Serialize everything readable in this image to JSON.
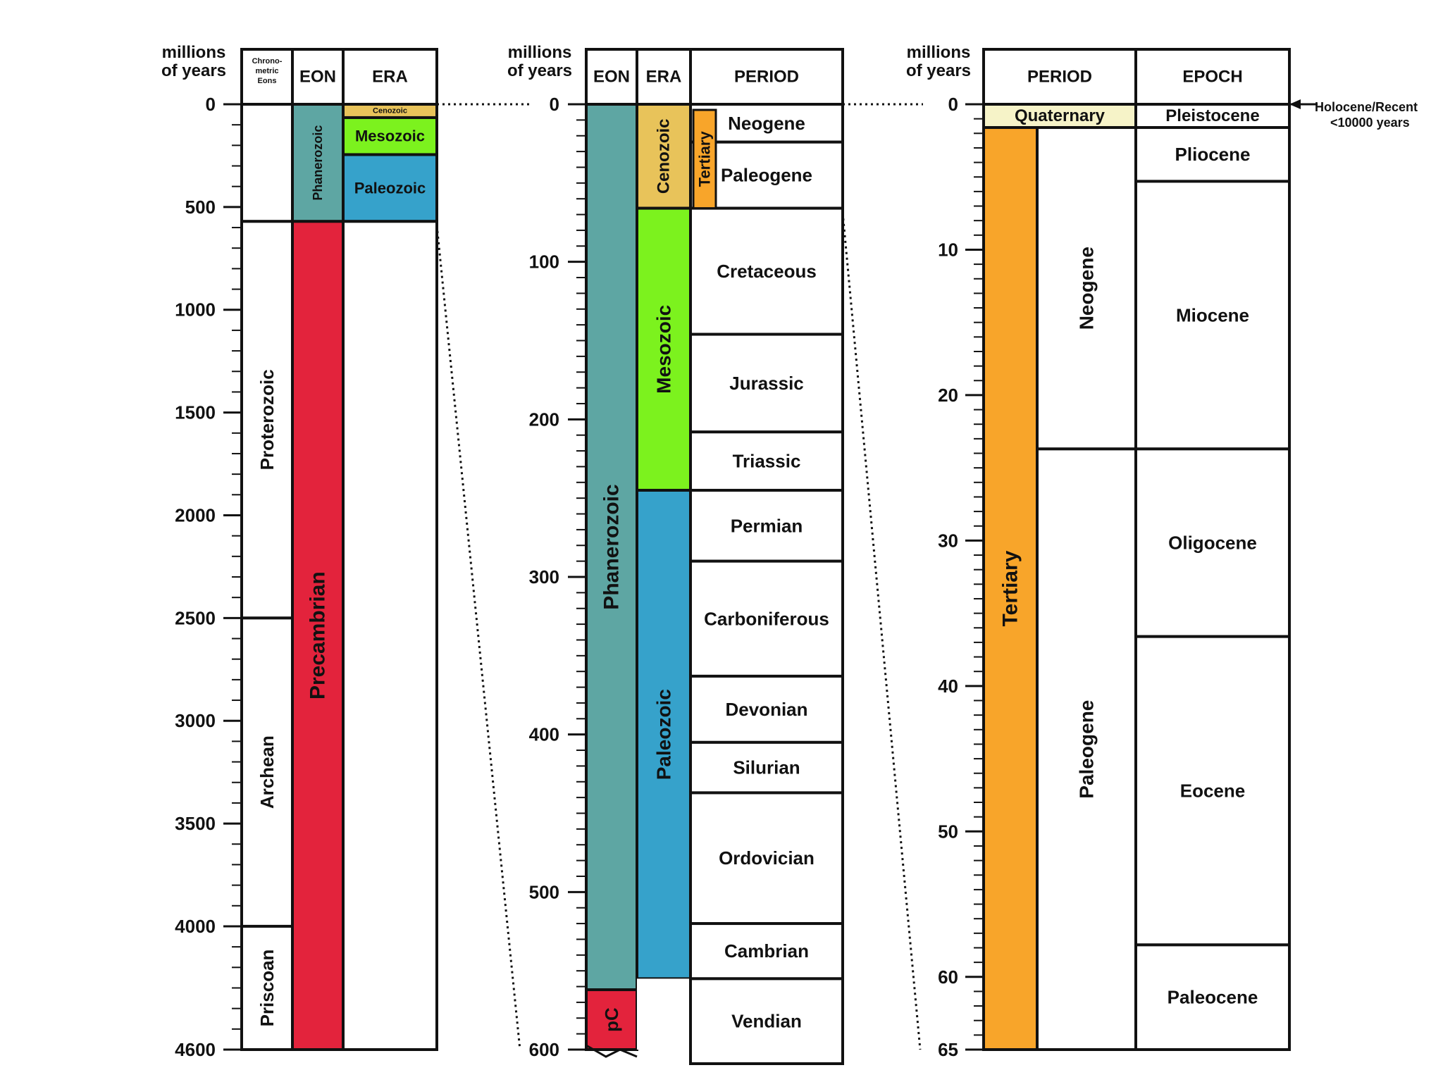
{
  "axis_title": [
    "millions",
    "of years"
  ],
  "colors": {
    "cenozoic": "#e8c35a",
    "mesozoic": "#7cf21e",
    "paleozoic": "#36a2cb",
    "phanerozoic": "#5ea6a3",
    "precambrian": "#e3233c",
    "quaternary": "#f6f3c8",
    "tertiary": "#f8a52a",
    "white": "#ffffff",
    "line": "#111111"
  },
  "panels": [
    {
      "id": "full",
      "axis": {
        "min": 0,
        "max": 4600,
        "major": [
          0,
          500,
          1000,
          1500,
          2000,
          2500,
          3000,
          3500,
          4000,
          4600
        ],
        "minor_step": 100
      },
      "columns": [
        {
          "header": [
            "Chrono-",
            "metric",
            "Eons"
          ],
          "header_small": true,
          "units": [
            {
              "label": "",
              "from": 0,
              "to": 570,
              "color": "white"
            },
            {
              "label": "Proterozoic",
              "from": 570,
              "to": 2500,
              "color": "white",
              "rotate": true,
              "size": 26,
              "bold": false
            },
            {
              "label": "Archean",
              "from": 2500,
              "to": 4000,
              "color": "white",
              "rotate": true,
              "size": 26,
              "bold": false
            },
            {
              "label": "Priscoan",
              "from": 4000,
              "to": 4600,
              "color": "white",
              "rotate": true,
              "size": 26,
              "bold": false
            }
          ]
        },
        {
          "header": [
            "EON"
          ],
          "units": [
            {
              "label": "Phanerozoic",
              "from": 0,
              "to": 570,
              "color": "phanerozoic",
              "rotate": true,
              "size": 18,
              "bold": false
            },
            {
              "label": "Precambrian",
              "from": 570,
              "to": 4600,
              "color": "precambrian",
              "rotate": true,
              "size": 30,
              "bold": false
            }
          ]
        },
        {
          "header": [
            "ERA"
          ],
          "units": [
            {
              "label": "Cenozoic",
              "from": 0,
              "to": 65,
              "color": "cenozoic",
              "rotate": false,
              "size": 11,
              "bold": true
            },
            {
              "label": "Mesozoic",
              "from": 65,
              "to": 245,
              "color": "mesozoic",
              "rotate": false,
              "size": 22,
              "bold": true
            },
            {
              "label": "Paleozoic",
              "from": 245,
              "to": 570,
              "color": "paleozoic",
              "rotate": false,
              "size": 22,
              "bold": true
            },
            {
              "label": "",
              "from": 570,
              "to": 4600,
              "color": "white"
            }
          ]
        }
      ]
    },
    {
      "id": "phanerozoic",
      "axis": {
        "min": 0,
        "max": 600,
        "major": [
          0,
          100,
          200,
          300,
          400,
          500,
          600
        ],
        "minor_step": 10
      },
      "columns": [
        {
          "header": [
            "EON"
          ],
          "units": [
            {
              "label": "Phanerozoic",
              "from": 0,
              "to": 562,
              "color": "phanerozoic",
              "rotate": true,
              "size": 30,
              "bold": false
            },
            {
              "label": "pC",
              "from": 562,
              "to": 600,
              "color": "precambrian",
              "rotate": true,
              "size": 26,
              "bold": false
            }
          ]
        },
        {
          "header": [
            "ERA"
          ],
          "units": [
            {
              "label": "Cenozoic",
              "from": 0,
              "to": 66,
              "color": "cenozoic",
              "rotate": true,
              "size": 24,
              "bold": true
            },
            {
              "label": "Mesozoic",
              "from": 66,
              "to": 245,
              "color": "mesozoic",
              "rotate": true,
              "size": 28,
              "bold": true
            },
            {
              "label": "Paleozoic",
              "from": 245,
              "to": 555,
              "color": "paleozoic",
              "rotate": true,
              "size": 28,
              "bold": true
            },
            {
              "label": "",
              "from": 555,
              "to": 600,
              "color": "white",
              "open": true
            }
          ]
        },
        {
          "header": [
            "PERIOD"
          ],
          "units": [
            {
              "label": "Neogene",
              "from": 0,
              "to": 24,
              "color": "white",
              "rotate": false,
              "size": 26,
              "bold": true
            },
            {
              "label": "Paleogene",
              "from": 24,
              "to": 66,
              "color": "white",
              "rotate": false,
              "size": 26,
              "bold": true
            },
            {
              "label": "Cretaceous",
              "from": 66,
              "to": 146,
              "color": "white",
              "rotate": false,
              "size": 26,
              "bold": true
            },
            {
              "label": "Jurassic",
              "from": 146,
              "to": 208,
              "color": "white",
              "rotate": false,
              "size": 26,
              "bold": true
            },
            {
              "label": "Triassic",
              "from": 208,
              "to": 245,
              "color": "white",
              "rotate": false,
              "size": 26,
              "bold": true
            },
            {
              "label": "Permian",
              "from": 245,
              "to": 290,
              "color": "white",
              "rotate": false,
              "size": 26,
              "bold": true
            },
            {
              "label": "Carboniferous",
              "from": 290,
              "to": 363,
              "color": "white",
              "rotate": false,
              "size": 26,
              "bold": true
            },
            {
              "label": "Devonian",
              "from": 363,
              "to": 405,
              "color": "white",
              "rotate": false,
              "size": 26,
              "bold": true
            },
            {
              "label": "Silurian",
              "from": 405,
              "to": 437,
              "color": "white",
              "rotate": false,
              "size": 26,
              "bold": true
            },
            {
              "label": "Ordovician",
              "from": 437,
              "to": 520,
              "color": "white",
              "rotate": false,
              "size": 26,
              "bold": true
            },
            {
              "label": "Cambrian",
              "from": 520,
              "to": 555,
              "color": "white",
              "rotate": false,
              "size": 26,
              "bold": true
            },
            {
              "label": "Vendian",
              "from": 555,
              "to": 610,
              "color": "white",
              "rotate": false,
              "size": 26,
              "bold": true
            }
          ],
          "inset": {
            "label": "Tertiary",
            "from": 1.6,
            "to": 66,
            "color": "tertiary",
            "size": 22
          }
        }
      ]
    },
    {
      "id": "cenozoic",
      "axis": {
        "min": 0,
        "max": 65,
        "major": [
          0,
          10,
          20,
          30,
          40,
          50,
          60,
          65
        ],
        "minor_step": 1
      },
      "columns": [
        {
          "header": [
            "PERIOD"
          ],
          "units": [
            {
              "label": "Quaternary",
              "from": 0,
              "to": 1.6,
              "color": "quaternary",
              "rotate": false,
              "size": 24,
              "bold": false,
              "span": "full"
            },
            {
              "label": "Tertiary",
              "from": 1.6,
              "to": 65,
              "color": "tertiary",
              "rotate": true,
              "size": 30,
              "bold": true,
              "span": "left"
            },
            {
              "label": "Neogene",
              "from": 1.6,
              "to": 23.7,
              "color": "white",
              "rotate": true,
              "size": 28,
              "bold": true,
              "span": "right"
            },
            {
              "label": "Paleogene",
              "from": 23.7,
              "to": 65,
              "color": "white",
              "rotate": true,
              "size": 28,
              "bold": true,
              "span": "right"
            }
          ]
        },
        {
          "header": [
            "EPOCH"
          ],
          "units": [
            {
              "label": "Pleistocene",
              "from": 0,
              "to": 1.6,
              "color": "white",
              "rotate": false,
              "size": 24,
              "bold": true
            },
            {
              "label": "Pliocene",
              "from": 1.6,
              "to": 5.3,
              "color": "white",
              "rotate": false,
              "size": 26,
              "bold": true
            },
            {
              "label": "Miocene",
              "from": 5.3,
              "to": 23.7,
              "color": "white",
              "rotate": false,
              "size": 26,
              "bold": true
            },
            {
              "label": "Oligocene",
              "from": 23.7,
              "to": 36.6,
              "color": "white",
              "rotate": false,
              "size": 26,
              "bold": true
            },
            {
              "label": "Eocene",
              "from": 36.6,
              "to": 57.8,
              "color": "white",
              "rotate": false,
              "size": 26,
              "bold": true
            },
            {
              "label": "Paleocene",
              "from": 57.8,
              "to": 65,
              "color": "white",
              "rotate": false,
              "size": 26,
              "bold": true
            }
          ]
        }
      ],
      "annotation": [
        "Holocene/Recent",
        "<10000 years"
      ]
    }
  ]
}
